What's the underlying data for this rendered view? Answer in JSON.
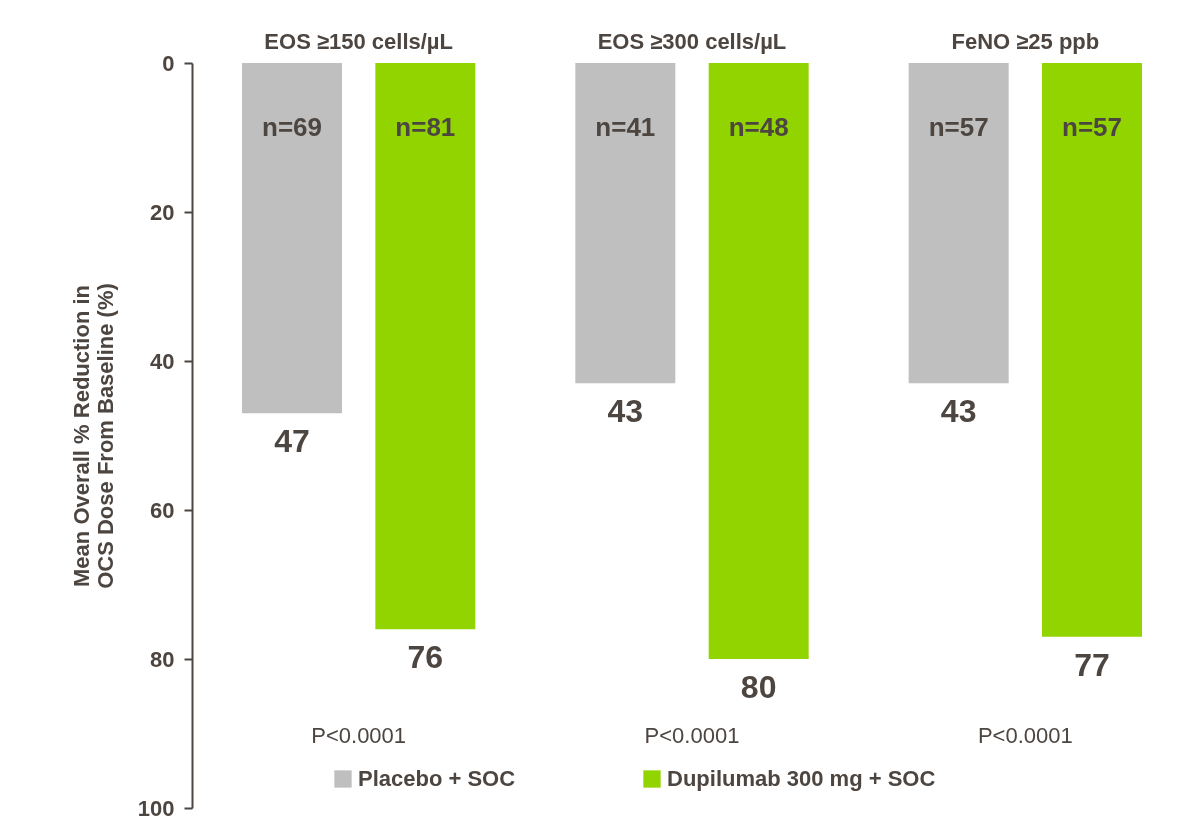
{
  "chart_data": {
    "type": "bar",
    "ylabel": "Mean Overall % Reduction in OCS Dose From Baseline (%)",
    "categories": [
      "EOS ≥150 cells/µL",
      "EOS ≥300 cells/µL",
      "FeNO ≥25 ppb"
    ],
    "series": [
      {
        "name": "Placebo + SOC",
        "color": "#bfbfbf",
        "values": [
          47,
          43,
          43
        ]
      },
      {
        "name": "Dupilumab 300 mg + SOC",
        "color": "#92d400",
        "values": [
          76,
          80,
          77
        ]
      }
    ],
    "ylim": [
      100,
      0
    ],
    "yticks": [
      0,
      20,
      40,
      60,
      80,
      100
    ],
    "data_labels": true,
    "legend": "bottom",
    "grid": false,
    "annotations": [
      "n=69",
      "n=81",
      "n=41",
      "n=48",
      "n=57",
      "n=57",
      "P<0.0001",
      "P<0.0001",
      "P<0.0001"
    ]
  }
}
